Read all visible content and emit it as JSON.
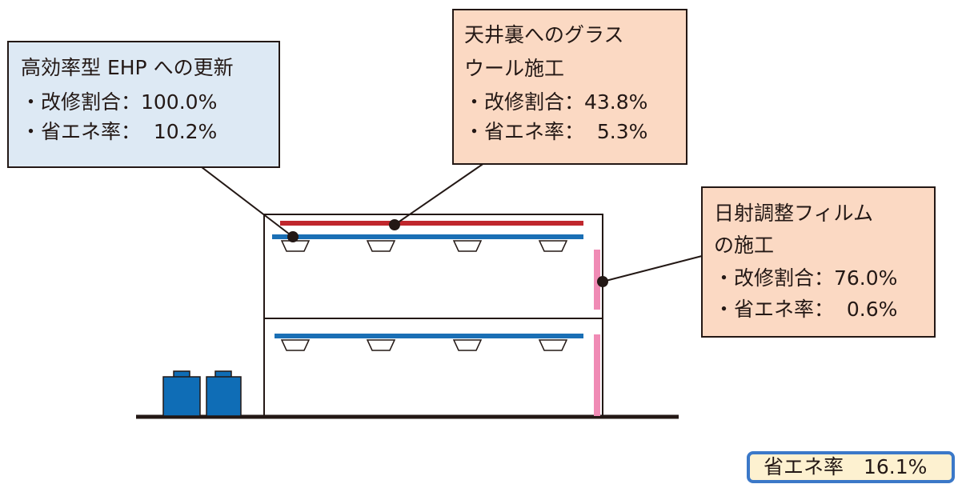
{
  "callouts": [
    {
      "lines": [
        "高効率型 EHP への更新",
        "・改修割合：100.0%",
        "・省エネ率：  10.2%"
      ]
    },
    {
      "lines": [
        "天井裏へのグラス",
        "ウール施工",
        "・改修割合：43.8%",
        "・省エネ率：  5.3%"
      ]
    },
    {
      "lines": [
        "日射調整フィルム",
        "の施工",
        "・改修割合：76.0%",
        "・省エネ率：  0.6%"
      ]
    }
  ],
  "total": "省エネ率　16.1%"
}
